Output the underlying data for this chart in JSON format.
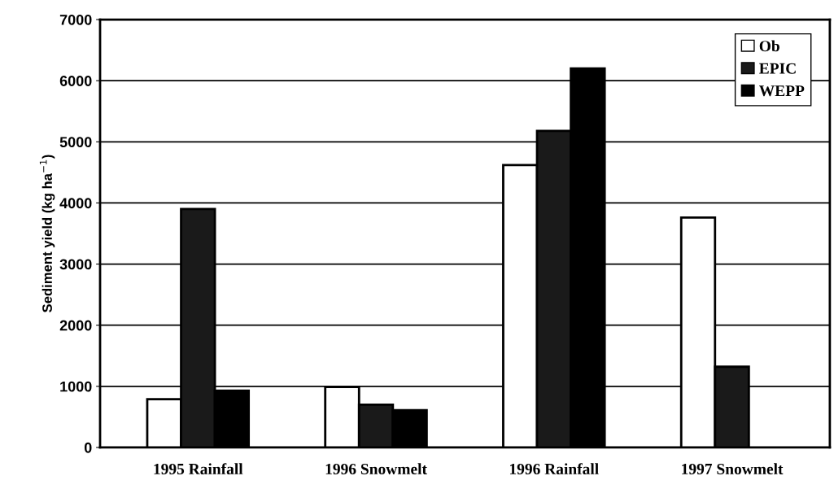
{
  "chart_data": {
    "type": "bar",
    "ylabel": "Sediment yield (kg ha$^{−1}$)",
    "categories": [
      "1995 Rainfall",
      "1996 Snowmelt",
      "1996 Rainfall",
      "1997 Snowmelt"
    ],
    "series": [
      {
        "name": "Ob",
        "color": "#ffffff",
        "values": [
          790,
          990,
          4620,
          3760
        ]
      },
      {
        "name": "EPIC",
        "color": "#1a1a1a",
        "values": [
          3900,
          700,
          5180,
          1320
        ]
      },
      {
        "name": "WEPP",
        "color": "#000000",
        "values": [
          930,
          610,
          6200,
          null
        ]
      }
    ],
    "ylim": [
      0,
      7000
    ],
    "yticks": [
      0,
      1000,
      2000,
      3000,
      4000,
      5000,
      6000,
      7000
    ],
    "grid": "y",
    "legend": "top right"
  }
}
